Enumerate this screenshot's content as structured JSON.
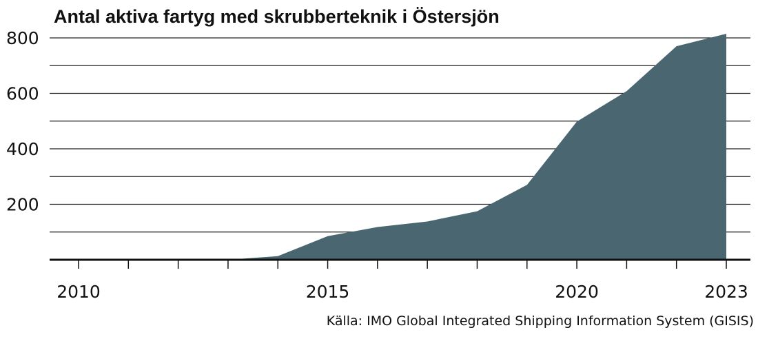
{
  "chart_data": {
    "type": "area",
    "title": "Antal aktiva fartyg med skrubberteknik i Östersjön",
    "source": "Källa: IMO Global Integrated Shipping Information System (GISIS)",
    "xlabel": "",
    "ylabel": "",
    "x": [
      2010,
      2011,
      2012,
      2013,
      2014,
      2015,
      2016,
      2017,
      2018,
      2019,
      2020,
      2021,
      2022,
      2023
    ],
    "values": [
      0,
      0,
      0,
      0,
      13,
      85,
      118,
      138,
      175,
      270,
      498,
      608,
      770,
      815
    ],
    "xlim": [
      2009.5,
      2023.5
    ],
    "ylim": [
      0,
      800
    ],
    "y_ticks": [
      0,
      100,
      200,
      300,
      400,
      500,
      600,
      700,
      800
    ],
    "y_tick_labels": [
      "200",
      "400",
      "600",
      "800"
    ],
    "y_labeled_values": [
      200,
      400,
      600,
      800
    ],
    "x_tick_labels": [
      "2010",
      "2015",
      "2020",
      "2023"
    ],
    "x_labeled_values": [
      2010,
      2015,
      2020,
      2023
    ],
    "grid": true,
    "legend": "none",
    "colors": {
      "area": "#4a6670",
      "grid": "#222222",
      "axis": "#111111"
    }
  }
}
